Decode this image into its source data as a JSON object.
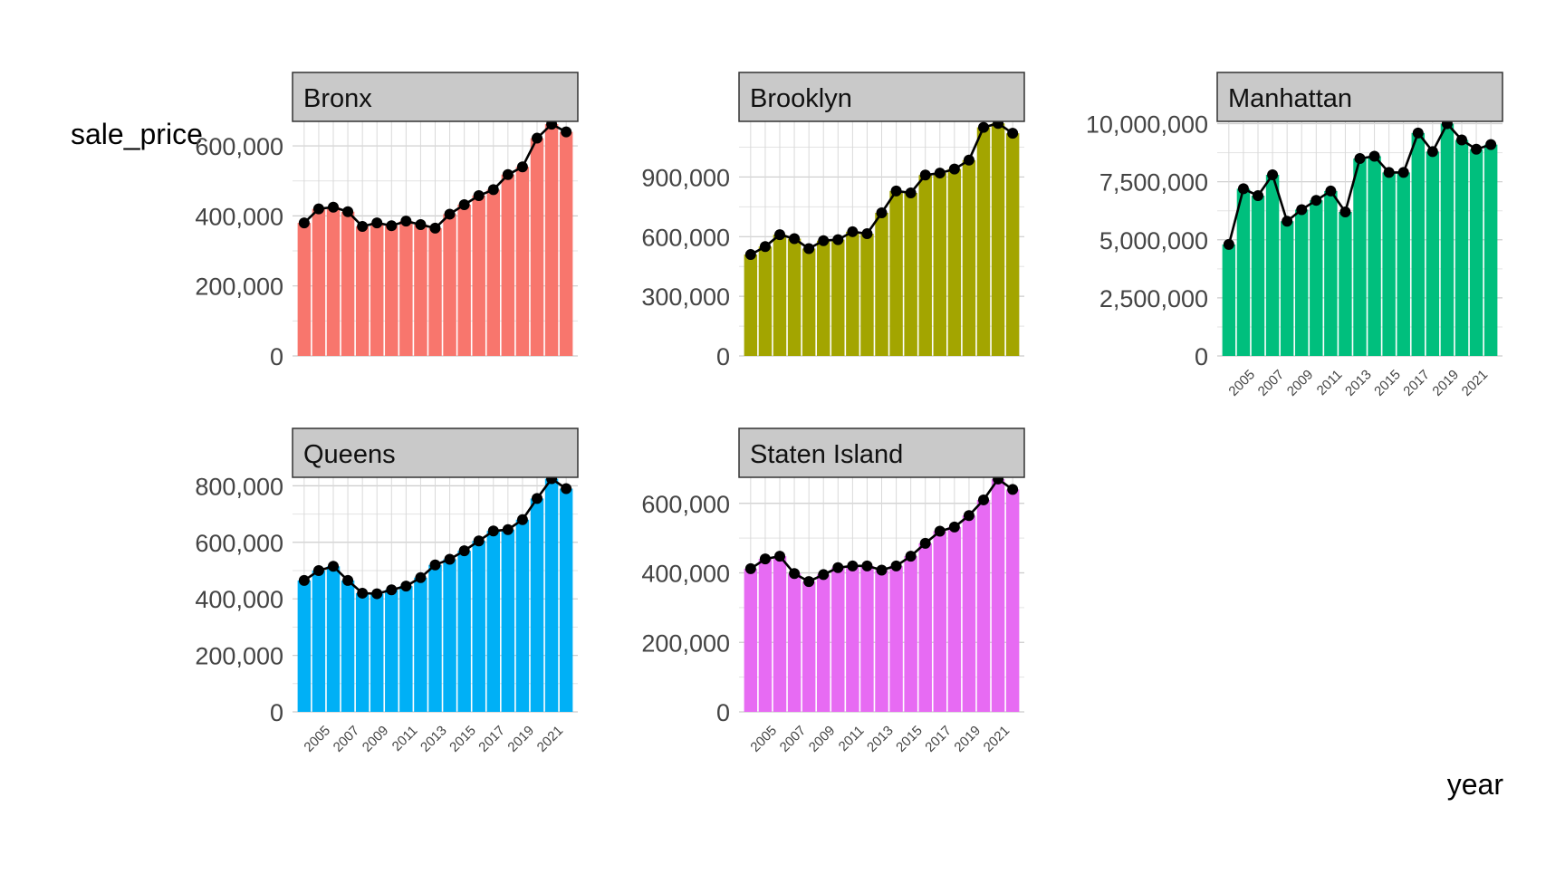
{
  "y_axis_label": "sale_price",
  "x_axis_label": "year",
  "years": [
    "2004",
    "2005",
    "2006",
    "2007",
    "2008",
    "2009",
    "2010",
    "2011",
    "2012",
    "2013",
    "2014",
    "2015",
    "2016",
    "2017",
    "2018",
    "2019",
    "2020",
    "2021",
    "2022"
  ],
  "x_tick_labels": [
    "2005",
    "2007",
    "2009",
    "2011",
    "2013",
    "2015",
    "2017",
    "2019",
    "2021"
  ],
  "chart_data": [
    {
      "type": "bar",
      "facet": "Bronx",
      "color": "#f8766d",
      "ylim": [
        0,
        670000
      ],
      "y_ticks": [
        0,
        200000,
        400000,
        600000
      ],
      "y_tick_labels": [
        "0",
        "200,000",
        "400,000",
        "600,000"
      ],
      "categories": [
        "2004",
        "2005",
        "2006",
        "2007",
        "2008",
        "2009",
        "2010",
        "2011",
        "2012",
        "2013",
        "2014",
        "2015",
        "2016",
        "2017",
        "2018",
        "2019",
        "2020",
        "2021",
        "2022"
      ],
      "values": [
        380000,
        420000,
        425000,
        412000,
        370000,
        380000,
        372000,
        385000,
        375000,
        365000,
        405000,
        432000,
        458000,
        475000,
        518000,
        540000,
        622000,
        662000,
        640000
      ]
    },
    {
      "type": "bar",
      "facet": "Brooklyn",
      "color": "#a3a500",
      "ylim": [
        0,
        1180000
      ],
      "y_ticks": [
        0,
        300000,
        600000,
        900000
      ],
      "y_tick_labels": [
        "0",
        "300,000",
        "600,000",
        "900,000"
      ],
      "categories": [
        "2004",
        "2005",
        "2006",
        "2007",
        "2008",
        "2009",
        "2010",
        "2011",
        "2012",
        "2013",
        "2014",
        "2015",
        "2016",
        "2017",
        "2018",
        "2019",
        "2020",
        "2021",
        "2022"
      ],
      "values": [
        510000,
        550000,
        610000,
        590000,
        540000,
        580000,
        585000,
        625000,
        615000,
        720000,
        830000,
        820000,
        910000,
        920000,
        940000,
        985000,
        1150000,
        1170000,
        1120000
      ]
    },
    {
      "type": "bar",
      "facet": "Manhattan",
      "color": "#00bf7d",
      "ylim": [
        0,
        10100000
      ],
      "y_ticks": [
        0,
        2500000,
        5000000,
        7500000,
        10000000
      ],
      "y_tick_labels": [
        "0",
        "2,500,000",
        "5,000,000",
        "7,500,000",
        "10,000,000"
      ],
      "categories": [
        "2004",
        "2005",
        "2006",
        "2007",
        "2008",
        "2009",
        "2010",
        "2011",
        "2012",
        "2013",
        "2014",
        "2015",
        "2016",
        "2017",
        "2018",
        "2019",
        "2020",
        "2021",
        "2022"
      ],
      "values": [
        4800000,
        7200000,
        6900000,
        7800000,
        5800000,
        6300000,
        6700000,
        7100000,
        6200000,
        8500000,
        8600000,
        7900000,
        7900000,
        9600000,
        8800000,
        10000000,
        9300000,
        8900000,
        9100000
      ]
    },
    {
      "type": "bar",
      "facet": "Queens",
      "color": "#00b0f6",
      "ylim": [
        0,
        830000
      ],
      "y_ticks": [
        0,
        200000,
        400000,
        600000,
        800000
      ],
      "y_tick_labels": [
        "0",
        "200,000",
        "400,000",
        "600,000",
        "800,000"
      ],
      "categories": [
        "2004",
        "2005",
        "2006",
        "2007",
        "2008",
        "2009",
        "2010",
        "2011",
        "2012",
        "2013",
        "2014",
        "2015",
        "2016",
        "2017",
        "2018",
        "2019",
        "2020",
        "2021",
        "2022"
      ],
      "values": [
        465000,
        500000,
        515000,
        465000,
        420000,
        418000,
        432000,
        445000,
        475000,
        520000,
        540000,
        570000,
        605000,
        640000,
        645000,
        680000,
        755000,
        825000,
        790000
      ]
    },
    {
      "type": "bar",
      "facet": "Staten Island",
      "color": "#e76bf3",
      "ylim": [
        0,
        675000
      ],
      "y_ticks": [
        0,
        200000,
        400000,
        600000
      ],
      "y_tick_labels": [
        "0",
        "200,000",
        "400,000",
        "600,000"
      ],
      "categories": [
        "2004",
        "2005",
        "2006",
        "2007",
        "2008",
        "2009",
        "2010",
        "2011",
        "2012",
        "2013",
        "2014",
        "2015",
        "2016",
        "2017",
        "2018",
        "2019",
        "2020",
        "2021",
        "2022"
      ],
      "values": [
        412000,
        440000,
        448000,
        398000,
        375000,
        395000,
        415000,
        420000,
        420000,
        408000,
        420000,
        448000,
        485000,
        520000,
        532000,
        565000,
        610000,
        670000,
        640000
      ]
    }
  ]
}
